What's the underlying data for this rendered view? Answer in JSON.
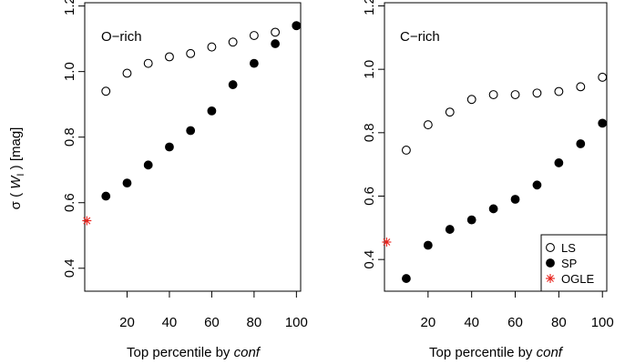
{
  "ylabel": {
    "sigma": "σ",
    "open": " ( ",
    "w": "W",
    "sub": "I",
    "close": " ) [mag]"
  },
  "chart_data": [
    {
      "type": "scatter",
      "title": "O−rich",
      "xlabel_text": "Top percentile by ",
      "xlabel_italic": "conf",
      "xticks": [
        20,
        40,
        60,
        80,
        100
      ],
      "yticks": [
        0.4,
        0.6,
        0.8,
        1.0,
        1.2
      ],
      "ytick_labels": [
        "0.4",
        "0.6",
        "0.8",
        "1.0",
        "1.2"
      ],
      "xlim": [
        0,
        102
      ],
      "ylim": [
        0.33,
        1.21
      ],
      "grid": false,
      "series": [
        {
          "name": "LS",
          "marker": "open-circle",
          "color": "#000000",
          "x": [
            10,
            20,
            30,
            40,
            50,
            60,
            70,
            80,
            90,
            100
          ],
          "y": [
            0.94,
            0.995,
            1.025,
            1.045,
            1.055,
            1.075,
            1.09,
            1.11,
            1.12,
            1.14
          ]
        },
        {
          "name": "SP",
          "marker": "filled-circle",
          "color": "#000000",
          "x": [
            10,
            20,
            30,
            40,
            50,
            60,
            70,
            80,
            90,
            100
          ],
          "y": [
            0.62,
            0.66,
            0.715,
            0.77,
            0.82,
            0.88,
            0.96,
            1.025,
            1.085,
            1.14
          ]
        },
        {
          "name": "OGLE",
          "marker": "asterisk",
          "color": "#e8201a",
          "x": [
            1
          ],
          "y": [
            0.545
          ]
        }
      ]
    },
    {
      "type": "scatter",
      "title": "C−rich",
      "xlabel_text": "Top percentile by ",
      "xlabel_italic": "conf",
      "xticks": [
        20,
        40,
        60,
        80,
        100
      ],
      "yticks": [
        0.4,
        0.6,
        0.8,
        1.0,
        1.2
      ],
      "ytick_labels": [
        "0.4",
        "0.6",
        "0.8",
        "1.0",
        "1.2"
      ],
      "xlim": [
        0,
        102
      ],
      "ylim": [
        0.3,
        1.21
      ],
      "grid": false,
      "legend_position": "bottom-right",
      "legend": [
        {
          "label": "LS",
          "marker": "open-circle",
          "color": "#000000"
        },
        {
          "label": "SP",
          "marker": "filled-circle",
          "color": "#000000"
        },
        {
          "label": "OGLE",
          "marker": "asterisk",
          "color": "#e8201a"
        }
      ],
      "series": [
        {
          "name": "LS",
          "marker": "open-circle",
          "color": "#000000",
          "x": [
            10,
            20,
            30,
            40,
            50,
            60,
            70,
            80,
            90,
            100
          ],
          "y": [
            0.745,
            0.825,
            0.865,
            0.905,
            0.92,
            0.92,
            0.925,
            0.93,
            0.945,
            0.975
          ]
        },
        {
          "name": "SP",
          "marker": "filled-circle",
          "color": "#000000",
          "x": [
            10,
            20,
            30,
            40,
            50,
            60,
            70,
            80,
            90,
            100
          ],
          "y": [
            0.34,
            0.445,
            0.495,
            0.525,
            0.56,
            0.59,
            0.635,
            0.705,
            0.765,
            0.83
          ]
        },
        {
          "name": "OGLE",
          "marker": "asterisk",
          "color": "#e8201a",
          "x": [
            1
          ],
          "y": [
            0.455
          ]
        }
      ]
    }
  ]
}
